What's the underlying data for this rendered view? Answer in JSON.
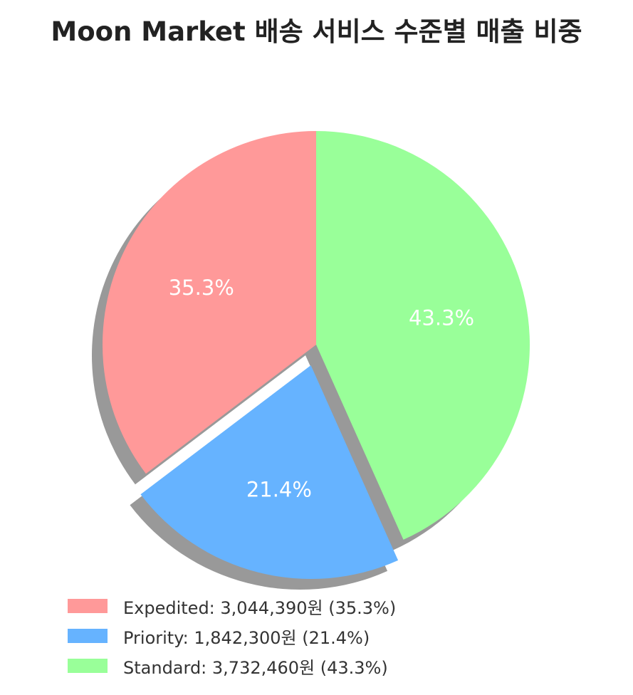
{
  "chart_data": {
    "type": "pie",
    "title": "Moon Market 배송 서비스 수준별 매출 비중",
    "unit": "원",
    "start_angle_deg": 90,
    "direction": "counterclockwise",
    "shadow": true,
    "legend_position": "bottom-left",
    "slices": [
      {
        "label": "Expedited",
        "value": 3044390,
        "percent_label": "35.3%",
        "legend_text": "Expedited: 3,044,390원 (35.3%)",
        "color": "#ff9999",
        "exploded": false
      },
      {
        "label": "Priority",
        "value": 1842300,
        "percent_label": "21.4%",
        "legend_text": "Priority: 1,842,300원 (21.4%)",
        "color": "#66b3ff",
        "exploded": true
      },
      {
        "label": "Standard",
        "value": 3732460,
        "percent_label": "43.3%",
        "legend_text": "Standard: 3,732,460원 (43.3%)",
        "color": "#99ff99",
        "exploded": false
      }
    ]
  }
}
